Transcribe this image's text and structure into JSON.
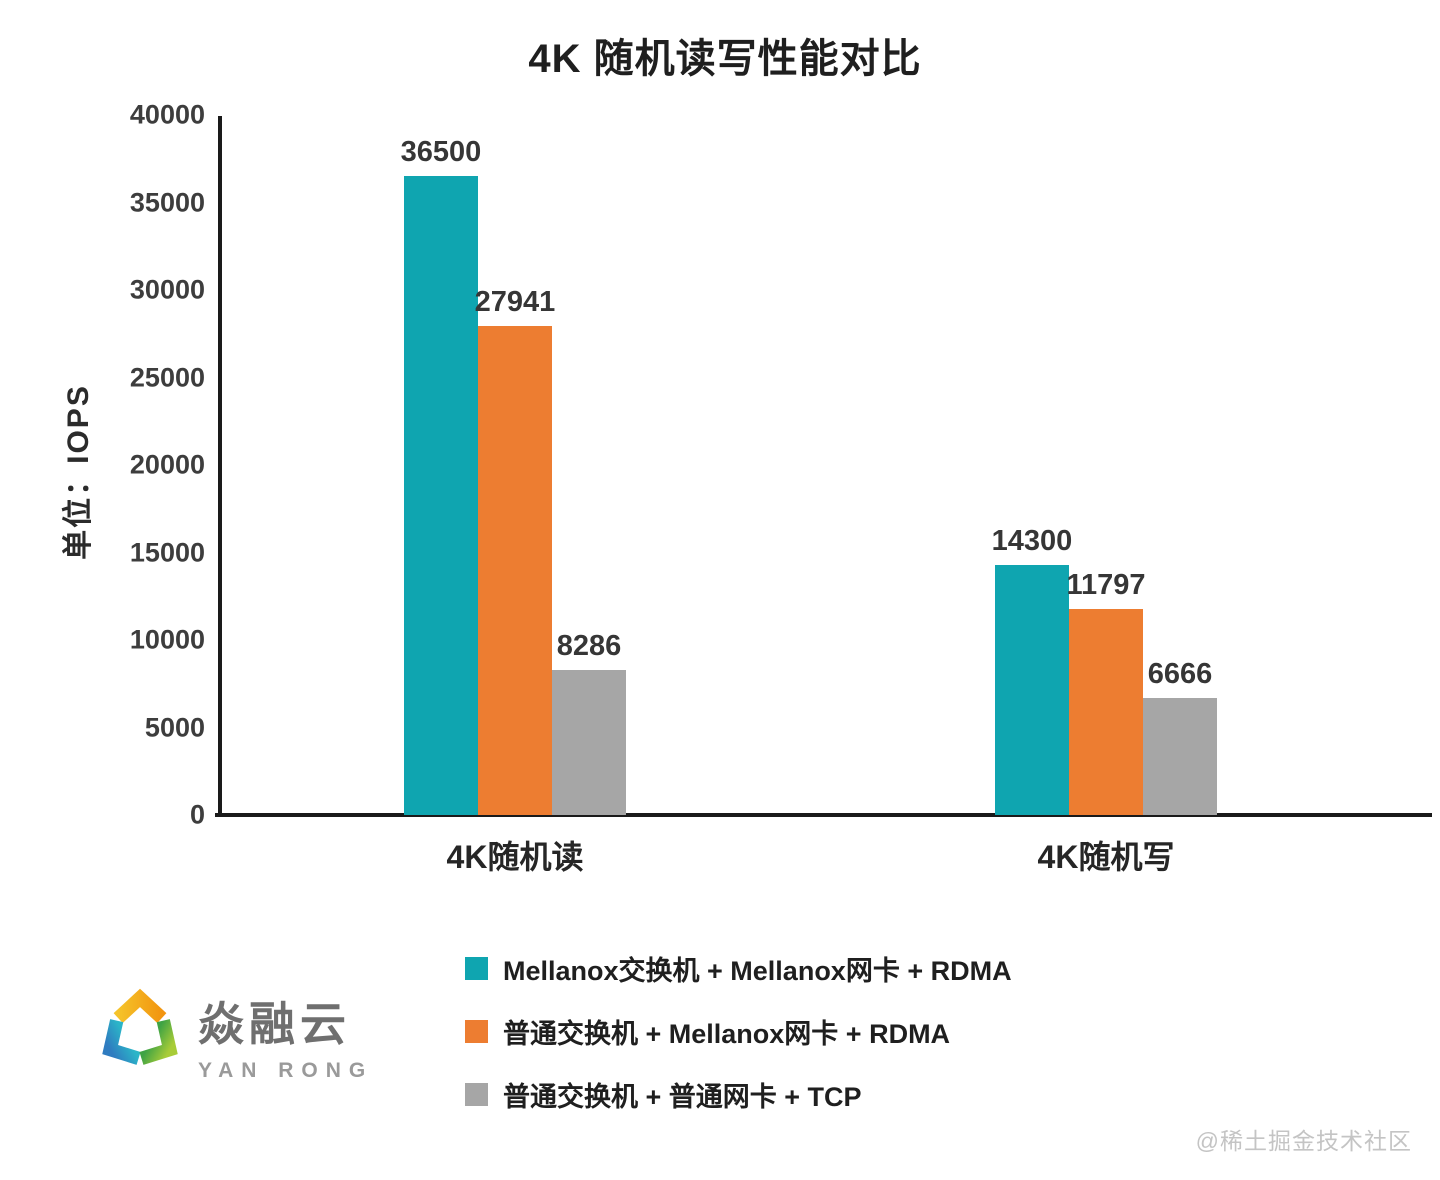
{
  "chart_data": {
    "type": "bar",
    "title": "4K 随机读写性能对比",
    "ylabel": "单位：IOPS",
    "xlabel": "",
    "categories": [
      "4K随机读",
      "4K随机写"
    ],
    "series": [
      {
        "name": "Mellanox交换机 + Mellanox网卡 + RDMA",
        "color": "#0FA5B0",
        "values": [
          36500,
          14300
        ]
      },
      {
        "name": "普通交换机 + Mellanox网卡 + RDMA",
        "color": "#ED7D31",
        "values": [
          27941,
          11797
        ]
      },
      {
        "name": "普通交换机 + 普通网卡 + TCP",
        "color": "#A6A6A6",
        "values": [
          8286,
          6666
        ]
      }
    ],
    "ylim": [
      0,
      40000
    ],
    "yticks": [
      0,
      5000,
      10000,
      15000,
      20000,
      25000,
      30000,
      35000,
      40000
    ],
    "grid": false,
    "legend_position": "bottom-left",
    "axis_color": "#1a1a1a"
  },
  "logo": {
    "name_cn": "焱融云",
    "name_en": "YAN RONG",
    "icon": "yanrong-triangle-icon",
    "icon_colors": [
      "#F5C país",
      "#F2950F",
      "#2BB5C8",
      "#2F7CC0",
      "#A8CC38",
      "#3FA344"
    ]
  },
  "watermark": "@稀土掘金技术社区"
}
